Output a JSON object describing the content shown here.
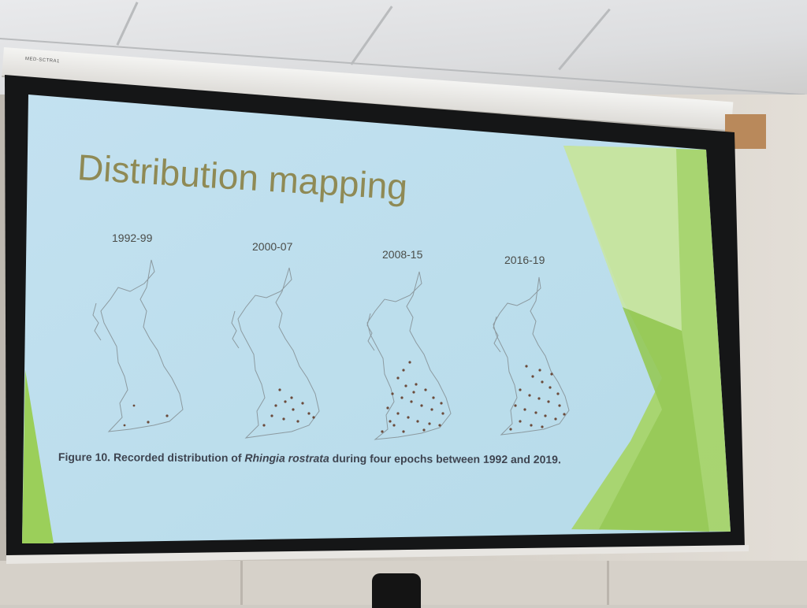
{
  "slide": {
    "title": "Distribution mapping",
    "epochs": [
      "1992-99",
      "2000-07",
      "2008-15",
      "2016-19"
    ],
    "caption": {
      "before": "Figure 10. Recorded distribution of ",
      "species": "Rhingia rostrata",
      "after": " during four epochs between 1992 and 2019."
    }
  },
  "projector": {
    "housing_label": "MED-SCTRA1"
  },
  "colors": {
    "slide_background": "#b9dcec",
    "title_text": "#8f8a55",
    "accent_green": "#9bcf5a",
    "record_dots": "#6b4a3a"
  }
}
